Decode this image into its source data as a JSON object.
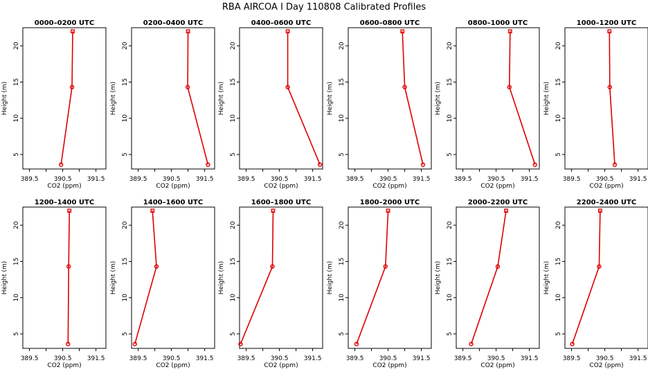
{
  "figure": {
    "title": "RBA AIRCOA I  Day 110808  Calibrated Profiles",
    "line_color": "#dd0000"
  },
  "chart_data": [
    {
      "type": "line",
      "title": "0000–0200 UTC",
      "xlabel": "CO2 (ppm)",
      "ylabel": "Height (m)",
      "xlim": [
        389.3,
        391.8
      ],
      "ylim": [
        3,
        22.5
      ],
      "xticks": [
        "389.5",
        "390.5",
        "391.5"
      ],
      "yticks": [
        "5",
        "10",
        "15",
        "20"
      ],
      "points": [
        {
          "x": 390.8,
          "y": 22
        },
        {
          "x": 390.78,
          "y": 14.3
        },
        {
          "x": 390.45,
          "y": 3.6
        }
      ]
    },
    {
      "type": "line",
      "title": "0200–0400 UTC",
      "xlabel": "CO2 (ppm)",
      "ylabel": "Height (m)",
      "xlim": [
        389.3,
        391.8
      ],
      "ylim": [
        3,
        22.5
      ],
      "xticks": [
        "389.5",
        "390.5",
        "391.5"
      ],
      "yticks": [
        "5",
        "10",
        "15",
        "20"
      ],
      "points": [
        {
          "x": 391.0,
          "y": 22
        },
        {
          "x": 390.99,
          "y": 14.3
        },
        {
          "x": 391.6,
          "y": 3.6
        }
      ]
    },
    {
      "type": "line",
      "title": "0400–0600 UTC",
      "xlabel": "CO2 (ppm)",
      "ylabel": "Height (m)",
      "xlim": [
        389.3,
        391.8
      ],
      "ylim": [
        3,
        22.5
      ],
      "xticks": [
        "389.5",
        "390.5",
        "391.5"
      ],
      "yticks": [
        "5",
        "10",
        "15",
        "20"
      ],
      "points": [
        {
          "x": 390.75,
          "y": 22
        },
        {
          "x": 390.75,
          "y": 14.3
        },
        {
          "x": 391.72,
          "y": 3.6
        }
      ]
    },
    {
      "type": "line",
      "title": "0600–0800 UTC",
      "xlabel": "CO2 (ppm)",
      "ylabel": "Height (m)",
      "xlim": [
        389.3,
        391.8
      ],
      "ylim": [
        3,
        22.5
      ],
      "xticks": [
        "389.5",
        "390.5",
        "391.5"
      ],
      "yticks": [
        "5",
        "10",
        "15",
        "20"
      ],
      "points": [
        {
          "x": 390.93,
          "y": 22
        },
        {
          "x": 391.0,
          "y": 14.3
        },
        {
          "x": 391.55,
          "y": 3.6
        }
      ]
    },
    {
      "type": "line",
      "title": "0800–1000 UTC",
      "xlabel": "CO2 (ppm)",
      "ylabel": "Height (m)",
      "xlim": [
        389.3,
        391.8
      ],
      "ylim": [
        3,
        22.5
      ],
      "xticks": [
        "389.5",
        "390.5",
        "391.5"
      ],
      "yticks": [
        "5",
        "10",
        "15",
        "20"
      ],
      "points": [
        {
          "x": 390.92,
          "y": 22
        },
        {
          "x": 390.9,
          "y": 14.3
        },
        {
          "x": 391.67,
          "y": 3.6
        }
      ]
    },
    {
      "type": "line",
      "title": "1000–1200 UTC",
      "xlabel": "CO2 (ppm)",
      "ylabel": "Height (m)",
      "xlim": [
        389.3,
        391.8
      ],
      "ylim": [
        3,
        22.5
      ],
      "xticks": [
        "389.5",
        "390.5",
        "391.5"
      ],
      "yticks": [
        "5",
        "10",
        "15",
        "20"
      ],
      "points": [
        {
          "x": 390.64,
          "y": 22
        },
        {
          "x": 390.65,
          "y": 14.3
        },
        {
          "x": 390.8,
          "y": 3.6
        }
      ]
    },
    {
      "type": "line",
      "title": "1200–1400 UTC",
      "xlabel": "CO2 (ppm)",
      "ylabel": "Height (m)",
      "xlim": [
        389.3,
        391.8
      ],
      "ylim": [
        3,
        22.5
      ],
      "xticks": [
        "389.5",
        "390.5",
        "391.5"
      ],
      "yticks": [
        "5",
        "10",
        "15",
        "20"
      ],
      "points": [
        {
          "x": 390.7,
          "y": 22
        },
        {
          "x": 390.68,
          "y": 14.3
        },
        {
          "x": 390.66,
          "y": 3.6
        }
      ]
    },
    {
      "type": "line",
      "title": "1400–1600 UTC",
      "xlabel": "CO2 (ppm)",
      "ylabel": "Height (m)",
      "xlim": [
        389.3,
        391.8
      ],
      "ylim": [
        3,
        22.5
      ],
      "xticks": [
        "389.5",
        "390.5",
        "391.5"
      ],
      "yticks": [
        "5",
        "10",
        "15",
        "20"
      ],
      "points": [
        {
          "x": 389.93,
          "y": 22
        },
        {
          "x": 390.05,
          "y": 14.3
        },
        {
          "x": 389.4,
          "y": 3.6
        }
      ]
    },
    {
      "type": "line",
      "title": "1600–1800 UTC",
      "xlabel": "CO2 (ppm)",
      "ylabel": "Height (m)",
      "xlim": [
        389.3,
        391.8
      ],
      "ylim": [
        3,
        22.5
      ],
      "xticks": [
        "389.5",
        "390.5",
        "391.5"
      ],
      "yticks": [
        "5",
        "10",
        "15",
        "20"
      ],
      "points": [
        {
          "x": 390.31,
          "y": 22
        },
        {
          "x": 390.29,
          "y": 14.3
        },
        {
          "x": 389.33,
          "y": 3.6
        }
      ]
    },
    {
      "type": "line",
      "title": "1800–2000 UTC",
      "xlabel": "CO2 (ppm)",
      "ylabel": "Height (m)",
      "xlim": [
        389.3,
        391.8
      ],
      "ylim": [
        3,
        22.5
      ],
      "xticks": [
        "389.5",
        "390.5",
        "391.5"
      ],
      "yticks": [
        "5",
        "10",
        "15",
        "20"
      ],
      "points": [
        {
          "x": 390.5,
          "y": 22
        },
        {
          "x": 390.42,
          "y": 14.3
        },
        {
          "x": 389.55,
          "y": 3.6
        }
      ]
    },
    {
      "type": "line",
      "title": "2000–2200 UTC",
      "xlabel": "CO2 (ppm)",
      "ylabel": "Height (m)",
      "xlim": [
        389.3,
        391.8
      ],
      "ylim": [
        3,
        22.5
      ],
      "xticks": [
        "389.5",
        "390.5",
        "391.5"
      ],
      "yticks": [
        "5",
        "10",
        "15",
        "20"
      ],
      "points": [
        {
          "x": 390.8,
          "y": 22
        },
        {
          "x": 390.55,
          "y": 14.3
        },
        {
          "x": 389.75,
          "y": 3.6
        }
      ]
    },
    {
      "type": "line",
      "title": "2200–2400 UTC",
      "xlabel": "CO2 (ppm)",
      "ylabel": "Height (m)",
      "xlim": [
        389.3,
        391.8
      ],
      "ylim": [
        3,
        22.5
      ],
      "xticks": [
        "389.5",
        "390.5",
        "391.5"
      ],
      "yticks": [
        "5",
        "10",
        "15",
        "20"
      ],
      "points": [
        {
          "x": 390.36,
          "y": 22
        },
        {
          "x": 390.33,
          "y": 14.3
        },
        {
          "x": 389.52,
          "y": 3.6
        }
      ]
    }
  ]
}
